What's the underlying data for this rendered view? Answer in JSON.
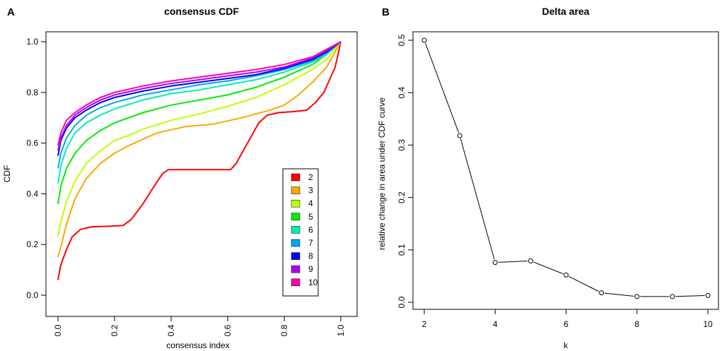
{
  "chart_data": [
    {
      "panel": "A",
      "type": "line",
      "title": "consensus CDF",
      "xlabel": "consensus index",
      "ylabel": "CDF",
      "xlim": [
        0,
        1
      ],
      "ylim": [
        0,
        1
      ],
      "xticks": [
        "0.0",
        "0.2",
        "0.4",
        "0.6",
        "0.8",
        "1.0"
      ],
      "yticks": [
        "0.0",
        "0.2",
        "0.4",
        "0.6",
        "0.8",
        "1.0"
      ],
      "legend_position": "bottom-right",
      "series": [
        {
          "name": "2",
          "color": "#ff0000",
          "points": [
            [
              0,
              0.06
            ],
            [
              0.01,
              0.12
            ],
            [
              0.03,
              0.18
            ],
            [
              0.05,
              0.23
            ],
            [
              0.08,
              0.26
            ],
            [
              0.12,
              0.27
            ],
            [
              0.18,
              0.272
            ],
            [
              0.23,
              0.275
            ],
            [
              0.26,
              0.3
            ],
            [
              0.3,
              0.36
            ],
            [
              0.34,
              0.43
            ],
            [
              0.37,
              0.48
            ],
            [
              0.39,
              0.495
            ],
            [
              0.45,
              0.495
            ],
            [
              0.55,
              0.495
            ],
            [
              0.61,
              0.495
            ],
            [
              0.63,
              0.52
            ],
            [
              0.67,
              0.6
            ],
            [
              0.71,
              0.68
            ],
            [
              0.74,
              0.71
            ],
            [
              0.78,
              0.72
            ],
            [
              0.84,
              0.725
            ],
            [
              0.88,
              0.73
            ],
            [
              0.91,
              0.76
            ],
            [
              0.94,
              0.8
            ],
            [
              0.96,
              0.85
            ],
            [
              0.98,
              0.9
            ],
            [
              1.0,
              1.0
            ]
          ]
        },
        {
          "name": "3",
          "color": "#ffa500",
          "points": [
            [
              0,
              0.15
            ],
            [
              0.01,
              0.19
            ],
            [
              0.03,
              0.28
            ],
            [
              0.06,
              0.38
            ],
            [
              0.1,
              0.46
            ],
            [
              0.15,
              0.52
            ],
            [
              0.2,
              0.56
            ],
            [
              0.25,
              0.59
            ],
            [
              0.3,
              0.615
            ],
            [
              0.35,
              0.64
            ],
            [
              0.45,
              0.665
            ],
            [
              0.55,
              0.675
            ],
            [
              0.65,
              0.7
            ],
            [
              0.75,
              0.73
            ],
            [
              0.8,
              0.75
            ],
            [
              0.85,
              0.79
            ],
            [
              0.9,
              0.84
            ],
            [
              0.95,
              0.9
            ],
            [
              1.0,
              1.0
            ]
          ]
        },
        {
          "name": "4",
          "color": "#bfff00",
          "points": [
            [
              0,
              0.23
            ],
            [
              0.01,
              0.29
            ],
            [
              0.03,
              0.37
            ],
            [
              0.06,
              0.45
            ],
            [
              0.1,
              0.52
            ],
            [
              0.15,
              0.57
            ],
            [
              0.2,
              0.61
            ],
            [
              0.25,
              0.63
            ],
            [
              0.3,
              0.655
            ],
            [
              0.4,
              0.69
            ],
            [
              0.5,
              0.715
            ],
            [
              0.6,
              0.745
            ],
            [
              0.7,
              0.78
            ],
            [
              0.8,
              0.83
            ],
            [
              0.9,
              0.89
            ],
            [
              0.95,
              0.93
            ],
            [
              1.0,
              1.0
            ]
          ]
        },
        {
          "name": "5",
          "color": "#00ee00",
          "points": [
            [
              0,
              0.36
            ],
            [
              0.01,
              0.43
            ],
            [
              0.03,
              0.5
            ],
            [
              0.06,
              0.56
            ],
            [
              0.1,
              0.61
            ],
            [
              0.15,
              0.65
            ],
            [
              0.2,
              0.68
            ],
            [
              0.3,
              0.72
            ],
            [
              0.4,
              0.75
            ],
            [
              0.5,
              0.77
            ],
            [
              0.6,
              0.79
            ],
            [
              0.7,
              0.82
            ],
            [
              0.8,
              0.86
            ],
            [
              0.9,
              0.91
            ],
            [
              0.95,
              0.95
            ],
            [
              1.0,
              1.0
            ]
          ]
        },
        {
          "name": "6",
          "color": "#00eeb0",
          "points": [
            [
              0,
              0.44
            ],
            [
              0.01,
              0.51
            ],
            [
              0.03,
              0.58
            ],
            [
              0.06,
              0.64
            ],
            [
              0.1,
              0.68
            ],
            [
              0.15,
              0.71
            ],
            [
              0.2,
              0.735
            ],
            [
              0.3,
              0.77
            ],
            [
              0.4,
              0.795
            ],
            [
              0.5,
              0.81
            ],
            [
              0.6,
              0.83
            ],
            [
              0.7,
              0.85
            ],
            [
              0.8,
              0.88
            ],
            [
              0.9,
              0.92
            ],
            [
              0.95,
              0.95
            ],
            [
              1.0,
              1.0
            ]
          ]
        },
        {
          "name": "7",
          "color": "#00a8ee",
          "points": [
            [
              0,
              0.5
            ],
            [
              0.01,
              0.56
            ],
            [
              0.03,
              0.62
            ],
            [
              0.06,
              0.67
            ],
            [
              0.1,
              0.71
            ],
            [
              0.15,
              0.74
            ],
            [
              0.2,
              0.76
            ],
            [
              0.3,
              0.79
            ],
            [
              0.4,
              0.81
            ],
            [
              0.5,
              0.83
            ],
            [
              0.6,
              0.845
            ],
            [
              0.7,
              0.865
            ],
            [
              0.8,
              0.89
            ],
            [
              0.9,
              0.925
            ],
            [
              0.95,
              0.955
            ],
            [
              1.0,
              1.0
            ]
          ]
        },
        {
          "name": "8",
          "color": "#0000ff",
          "points": [
            [
              0,
              0.55
            ],
            [
              0.01,
              0.61
            ],
            [
              0.03,
              0.66
            ],
            [
              0.06,
              0.7
            ],
            [
              0.1,
              0.73
            ],
            [
              0.15,
              0.76
            ],
            [
              0.2,
              0.78
            ],
            [
              0.3,
              0.805
            ],
            [
              0.4,
              0.825
            ],
            [
              0.5,
              0.84
            ],
            [
              0.6,
              0.855
            ],
            [
              0.7,
              0.87
            ],
            [
              0.8,
              0.895
            ],
            [
              0.9,
              0.93
            ],
            [
              0.95,
              0.96
            ],
            [
              1.0,
              1.0
            ]
          ]
        },
        {
          "name": "9",
          "color": "#b000ee",
          "points": [
            [
              0,
              0.57
            ],
            [
              0.01,
              0.62
            ],
            [
              0.03,
              0.67
            ],
            [
              0.06,
              0.71
            ],
            [
              0.1,
              0.74
            ],
            [
              0.15,
              0.77
            ],
            [
              0.2,
              0.79
            ],
            [
              0.3,
              0.815
            ],
            [
              0.4,
              0.835
            ],
            [
              0.5,
              0.85
            ],
            [
              0.6,
              0.865
            ],
            [
              0.7,
              0.88
            ],
            [
              0.8,
              0.9
            ],
            [
              0.9,
              0.935
            ],
            [
              0.95,
              0.965
            ],
            [
              1.0,
              1.0
            ]
          ]
        },
        {
          "name": "10",
          "color": "#ff00aa",
          "points": [
            [
              0,
              0.59
            ],
            [
              0.01,
              0.64
            ],
            [
              0.03,
              0.69
            ],
            [
              0.06,
              0.72
            ],
            [
              0.1,
              0.75
            ],
            [
              0.15,
              0.78
            ],
            [
              0.2,
              0.8
            ],
            [
              0.3,
              0.825
            ],
            [
              0.4,
              0.845
            ],
            [
              0.5,
              0.86
            ],
            [
              0.6,
              0.875
            ],
            [
              0.7,
              0.89
            ],
            [
              0.8,
              0.91
            ],
            [
              0.9,
              0.94
            ],
            [
              0.95,
              0.97
            ],
            [
              1.0,
              1.0
            ]
          ]
        }
      ]
    },
    {
      "panel": "B",
      "type": "line",
      "title": "Delta area",
      "xlabel": "k",
      "ylabel": "relative change in area under CDF curve",
      "xlim": [
        2,
        10
      ],
      "ylim": [
        0,
        0.5
      ],
      "xticks": [
        "2",
        "4",
        "6",
        "8",
        "10"
      ],
      "yticks": [
        "0.0",
        "0.1",
        "0.2",
        "0.3",
        "0.4",
        "0.5"
      ],
      "x": [
        2,
        3,
        4,
        5,
        6,
        7,
        8,
        9,
        10
      ],
      "values": [
        0.5,
        0.318,
        0.076,
        0.079,
        0.052,
        0.018,
        0.011,
        0.011,
        0.013
      ]
    }
  ]
}
